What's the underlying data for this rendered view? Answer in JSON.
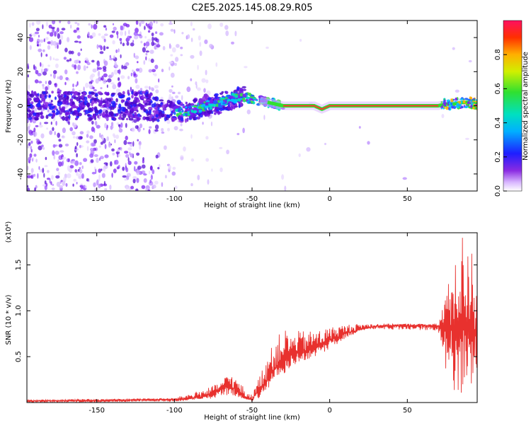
{
  "title": "C2E5.2025.145.08.29.R05",
  "colors": {
    "line": "#e8312e",
    "spectrogram_background": "#ffffff",
    "axis": "#000000"
  },
  "chart_data": [
    {
      "type": "heatmap",
      "xlabel": "Height of straight line (km)",
      "ylabel": "Frequency (Hz)",
      "xlim": [
        -195,
        95
      ],
      "ylim": [
        -50,
        50
      ],
      "xticks": [
        -150,
        -100,
        -50,
        0,
        50
      ],
      "yticks": [
        -40,
        -20,
        0,
        20,
        40
      ],
      "grid": false,
      "description_of_content": "signal trace along frequency ≈ 0 Hz; diffuse noise at low heights",
      "centerline": {
        "x": [
          -195,
          -170,
          -150,
          -120,
          -110,
          -100,
          -90,
          -80,
          -70,
          -60,
          -55,
          -50,
          -45,
          -40,
          -35,
          -30,
          -25,
          -20,
          -10,
          -5,
          0,
          10,
          30,
          50,
          70,
          75,
          80,
          85,
          90,
          95
        ],
        "y": [
          0,
          0,
          0,
          0,
          -2,
          -3,
          -3,
          0,
          2,
          5,
          5,
          4,
          3,
          2,
          1,
          0,
          0,
          0,
          0,
          -2,
          0,
          0,
          0,
          0,
          0,
          1,
          1,
          2,
          2,
          1
        ]
      },
      "colorbar": {
        "label": "Normalized spectral amplitude",
        "range": [
          0,
          1
        ],
        "ticks": [
          "0.0",
          "0.2",
          "0.4",
          "0.6",
          "0.8"
        ]
      }
    },
    {
      "type": "line",
      "xlabel": "Height of straight line (km)",
      "ylabel": "SNR (10 * v/v)",
      "yscale_label": "(x10⁴)",
      "xlim": [
        -195,
        95
      ],
      "ylim": [
        0,
        1.85
      ],
      "xticks": [
        -150,
        -100,
        -50,
        0,
        50
      ],
      "yticks": [
        0.5,
        1.0,
        1.5
      ],
      "ytick_labels": [
        "0.5",
        "1.0",
        "1.5"
      ],
      "grid": false,
      "series": [
        {
          "x": [
            -195,
            -150,
            -120,
            -100,
            -90,
            -80,
            -75,
            -70,
            -65,
            -60,
            -55,
            -50,
            -45,
            -40,
            -35,
            -30,
            -25,
            -20,
            -15,
            -10,
            -5,
            0,
            10,
            20,
            30,
            40,
            50,
            60,
            70,
            75,
            80,
            85,
            90,
            95
          ],
          "y": [
            0.02,
            0.02,
            0.03,
            0.03,
            0.04,
            0.07,
            0.1,
            0.14,
            0.18,
            0.14,
            0.05,
            0.03,
            0.15,
            0.25,
            0.38,
            0.45,
            0.52,
            0.56,
            0.55,
            0.6,
            0.62,
            0.68,
            0.75,
            0.8,
            0.83,
            0.84,
            0.84,
            0.84,
            0.83,
            0.82,
            0.8,
            0.85,
            0.8,
            0.75
          ],
          "envelope": {
            "x": [
              -195,
              -100,
              -80,
              -70,
              -65,
              -60,
              -50,
              -45,
              -40,
              -35,
              -30,
              -25,
              -20,
              -10,
              0,
              10,
              20,
              30,
              70,
              75,
              80,
              85,
              90,
              95
            ],
            "upper": [
              0.03,
              0.05,
              0.15,
              0.22,
              0.33,
              0.25,
              0.08,
              0.3,
              0.55,
              0.65,
              0.84,
              0.72,
              0.78,
              0.78,
              0.82,
              0.85,
              0.86,
              0.86,
              0.86,
              1.25,
              1.45,
              1.85,
              1.82,
              1.5
            ],
            "lower": [
              0.0,
              0.01,
              0.03,
              0.06,
              0.08,
              0.06,
              0.02,
              0.05,
              0.15,
              0.25,
              0.3,
              0.38,
              0.42,
              0.5,
              0.58,
              0.7,
              0.78,
              0.8,
              0.78,
              0.35,
              0.1,
              0.05,
              0.02,
              0.02
            ]
          }
        }
      ]
    }
  ]
}
